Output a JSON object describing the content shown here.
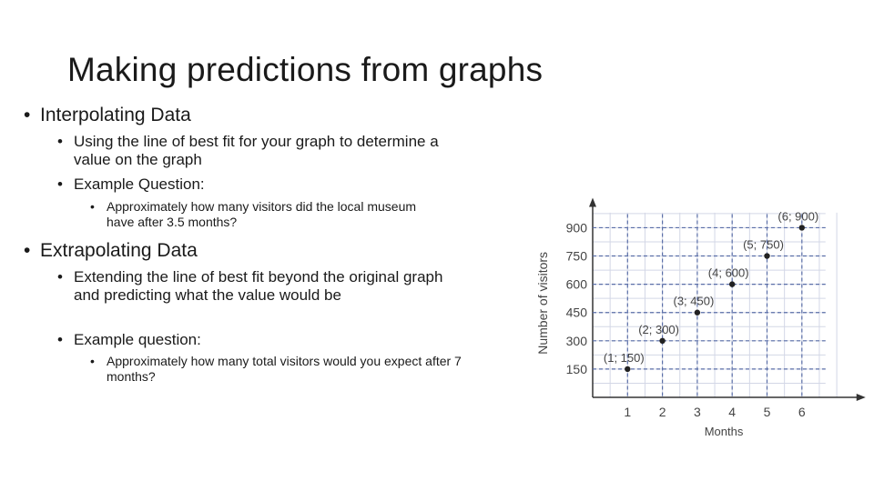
{
  "slide": {
    "title": "Making predictions from graphs",
    "bullets": [
      {
        "text": "Interpolating Data",
        "children": [
          {
            "text": "Using the line of best fit for your graph to determine a value on the graph"
          },
          {
            "text": "Example Question:",
            "children": [
              {
                "text": "Approximately how many visitors did the local museum have after 3.5 months?"
              }
            ]
          }
        ]
      },
      {
        "text": "Extrapolating Data",
        "children": [
          {
            "text": "Extending the line of best fit beyond the original graph and predicting what the value would be"
          },
          {
            "text": "Example question:",
            "children": [
              {
                "text": "Approximately how many total visitors would you expect after 7 months?"
              }
            ]
          }
        ]
      }
    ]
  },
  "chart_data": {
    "type": "scatter",
    "xlabel": "Months",
    "ylabel": "Number of visitors",
    "x_ticks": [
      1,
      2,
      3,
      4,
      5,
      6
    ],
    "y_ticks": [
      150,
      300,
      450,
      600,
      750,
      900
    ],
    "xlim": [
      0,
      7.2
    ],
    "ylim": [
      0,
      1020
    ],
    "grid": true,
    "points": [
      {
        "x": 1,
        "y": 150,
        "label": "(1; 150)"
      },
      {
        "x": 2,
        "y": 300,
        "label": "(2; 300)"
      },
      {
        "x": 3,
        "y": 450,
        "label": "(3; 450)"
      },
      {
        "x": 4,
        "y": 600,
        "label": "(4; 600)"
      },
      {
        "x": 5,
        "y": 750,
        "label": "(5; 750)"
      },
      {
        "x": 6,
        "y": 900,
        "label": "(6; 900)"
      }
    ],
    "colors": {
      "grid": "#5b6fa8",
      "point": "#222222",
      "axis": "#333333"
    }
  }
}
